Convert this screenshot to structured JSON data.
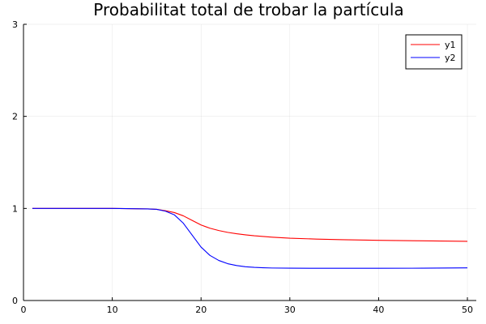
{
  "chart_data": {
    "type": "line",
    "title": "Probabilitat total de trobar la partícula",
    "xlabel": "",
    "ylabel": "",
    "xlim": [
      0,
      51
    ],
    "ylim": [
      0,
      3
    ],
    "x_ticks": [
      0,
      10,
      20,
      30,
      40,
      50
    ],
    "y_ticks": [
      0,
      1,
      2,
      3
    ],
    "grid": true,
    "legend_position": "top-right",
    "series": [
      {
        "name": "y1",
        "color": "#ff0000",
        "x": [
          1,
          5,
          10,
          14,
          15,
          16,
          17,
          18,
          19,
          20,
          21,
          22,
          23,
          24,
          25,
          26,
          28,
          30,
          33,
          36,
          40,
          45,
          50
        ],
        "y": [
          1.0,
          1.0,
          1.0,
          0.995,
          0.99,
          0.975,
          0.955,
          0.92,
          0.87,
          0.82,
          0.785,
          0.76,
          0.74,
          0.725,
          0.713,
          0.703,
          0.688,
          0.677,
          0.667,
          0.66,
          0.654,
          0.648,
          0.643
        ]
      },
      {
        "name": "y2",
        "color": "#0000ff",
        "x": [
          1,
          5,
          10,
          14,
          15,
          16,
          17,
          18,
          19,
          20,
          21,
          22,
          23,
          24,
          25,
          26,
          27,
          28,
          30,
          35,
          40,
          45,
          50
        ],
        "y": [
          1.0,
          1.0,
          1.0,
          0.995,
          0.99,
          0.97,
          0.93,
          0.84,
          0.71,
          0.58,
          0.49,
          0.435,
          0.4,
          0.38,
          0.367,
          0.36,
          0.356,
          0.353,
          0.351,
          0.35,
          0.35,
          0.351,
          0.355
        ]
      }
    ]
  }
}
